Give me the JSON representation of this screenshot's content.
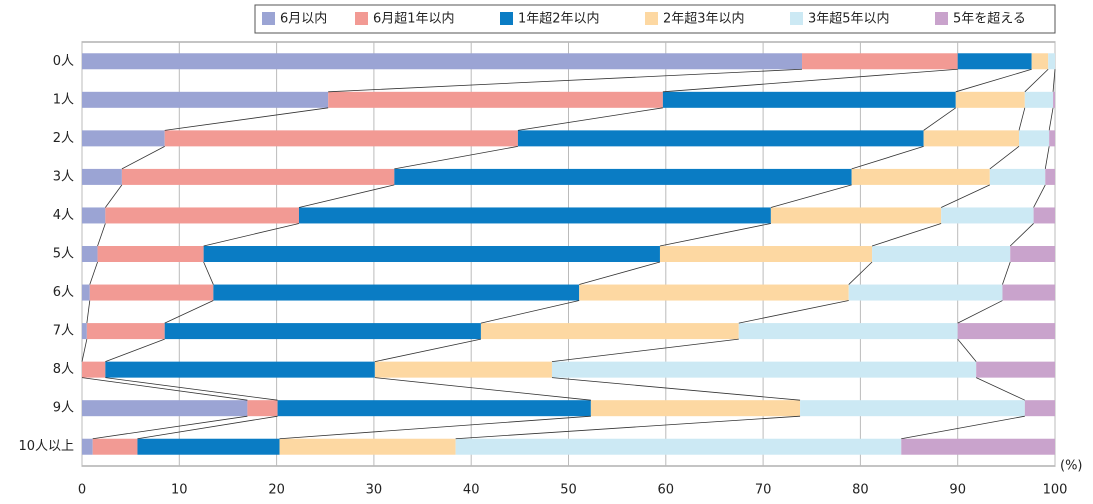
{
  "chart_data": {
    "type": "stacked-barh",
    "categories": [
      "0人",
      "1人",
      "2人",
      "3人",
      "4人",
      "5人",
      "6人",
      "7人",
      "8人",
      "9人",
      "10人以上"
    ],
    "series": [
      {
        "name": "6月以内",
        "color": "#9ba4d4",
        "values": [
          74.0,
          25.3,
          8.5,
          4.1,
          2.4,
          1.6,
          0.8,
          0.5,
          0,
          17.0,
          1.1
        ]
      },
      {
        "name": "6月超1年以内",
        "color": "#f29a94",
        "values": [
          16.0,
          34.4,
          36.3,
          28.0,
          19.9,
          10.9,
          12.7,
          8.0,
          2.4,
          3.1,
          4.6
        ]
      },
      {
        "name": "1年超2年以内",
        "color": "#0a7cc4",
        "values": [
          7.6,
          30.1,
          41.7,
          47.0,
          48.5,
          46.9,
          37.6,
          32.5,
          27.7,
          32.2,
          14.6
        ]
      },
      {
        "name": "2年超3年以内",
        "color": "#fdd8a2",
        "values": [
          1.7,
          7.1,
          9.8,
          14.2,
          17.5,
          21.8,
          27.7,
          26.5,
          18.2,
          21.5,
          18.1
        ]
      },
      {
        "name": "3年超5年以内",
        "color": "#cce9f4",
        "values": [
          0.7,
          2.9,
          3.1,
          5.7,
          9.5,
          14.2,
          15.8,
          22.5,
          43.6,
          23.1,
          45.8
        ]
      },
      {
        "name": "5年を超える",
        "color": "#c9a3cc",
        "values": [
          0,
          0.2,
          0.6,
          1.0,
          2.2,
          4.6,
          5.4,
          10.0,
          8.1,
          3.1,
          15.8
        ]
      }
    ],
    "xlim": [
      0,
      100
    ],
    "xticks": [
      0,
      10,
      20,
      30,
      40,
      50,
      60,
      70,
      80,
      90,
      100
    ],
    "xlabel": "(%)",
    "grid": true
  }
}
